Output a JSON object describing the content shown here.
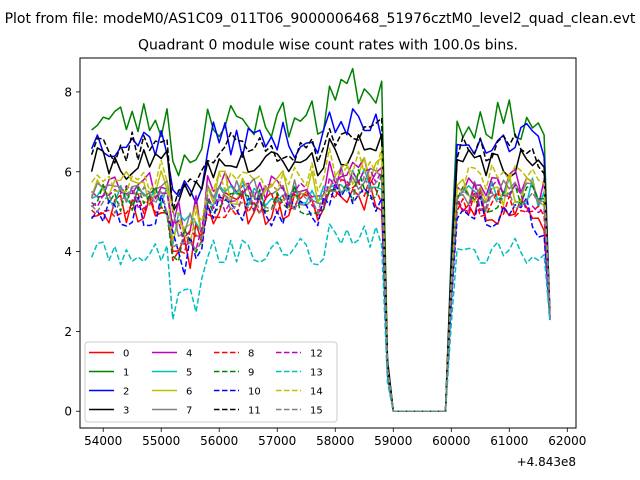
{
  "figure": {
    "suptitle": "Plot from file: modeM0/AS1C09_011T06_9000006468_51976cztM0_level2_quad_clean.evt"
  },
  "chart_data": {
    "type": "line",
    "title": "Quadrant 0 module wise count rates with 100.0s bins.",
    "xlabel": "",
    "ylabel": "",
    "x_offset_label": "+4.843e8",
    "xlim": [
      53600,
      62150
    ],
    "ylim": [
      -0.42,
      8.85
    ],
    "xticks": [
      54000,
      55000,
      56000,
      57000,
      58000,
      59000,
      60000,
      61000,
      62000
    ],
    "yticks": [
      0,
      2,
      4,
      6,
      8
    ],
    "grid": false,
    "legend": {
      "placement": "lower-left",
      "columns": 4
    },
    "x_start": 53800,
    "x_step": 100,
    "gap": {
      "from": 59000,
      "to": 59900
    },
    "x_end": 61700,
    "series": [
      {
        "name": "0",
        "color": "#ff0000",
        "dash": "solid",
        "level": 5.1,
        "noise": 0.45,
        "seed": 11
      },
      {
        "name": "1",
        "color": "#008000",
        "dash": "solid",
        "level": 7.3,
        "noise": 0.5,
        "seed": 23,
        "mid_boost": 0.5
      },
      {
        "name": "2",
        "color": "#0000ff",
        "dash": "solid",
        "level": 6.8,
        "noise": 0.45,
        "seed": 37
      },
      {
        "name": "3",
        "color": "#000000",
        "dash": "solid",
        "level": 6.2,
        "noise": 0.4,
        "seed": 41
      },
      {
        "name": "4",
        "color": "#bf00bf",
        "dash": "solid",
        "level": 5.7,
        "noise": 0.4,
        "seed": 53
      },
      {
        "name": "5",
        "color": "#00bfbf",
        "dash": "solid",
        "level": 5.5,
        "noise": 0.35,
        "seed": 67
      },
      {
        "name": "6",
        "color": "#bfbf00",
        "dash": "solid",
        "level": 5.6,
        "noise": 0.45,
        "seed": 71
      },
      {
        "name": "7",
        "color": "#808080",
        "dash": "solid",
        "level": 5.5,
        "noise": 0.35,
        "seed": 83
      },
      {
        "name": "8",
        "color": "#ff0000",
        "dash": "dashed",
        "level": 5.2,
        "noise": 0.35,
        "seed": 97
      },
      {
        "name": "9",
        "color": "#008000",
        "dash": "dashed",
        "level": 5.3,
        "noise": 0.4,
        "seed": 101
      },
      {
        "name": "10",
        "color": "#0000ff",
        "dash": "dashed",
        "level": 5.0,
        "noise": 0.4,
        "seed": 113
      },
      {
        "name": "11",
        "color": "#000000",
        "dash": "dashed",
        "level": 6.6,
        "noise": 0.4,
        "seed": 127
      },
      {
        "name": "12",
        "color": "#bf00bf",
        "dash": "dashed",
        "level": 5.4,
        "noise": 0.4,
        "seed": 131
      },
      {
        "name": "13",
        "color": "#00bfbf",
        "dash": "dashed",
        "level": 4.0,
        "noise": 0.35,
        "seed": 149
      },
      {
        "name": "14",
        "color": "#bfbf00",
        "dash": "dashed",
        "level": 5.9,
        "noise": 0.4,
        "seed": 157
      },
      {
        "name": "15",
        "color": "#808080",
        "dash": "dashed",
        "level": 5.3,
        "noise": 0.35,
        "seed": 163
      }
    ]
  }
}
